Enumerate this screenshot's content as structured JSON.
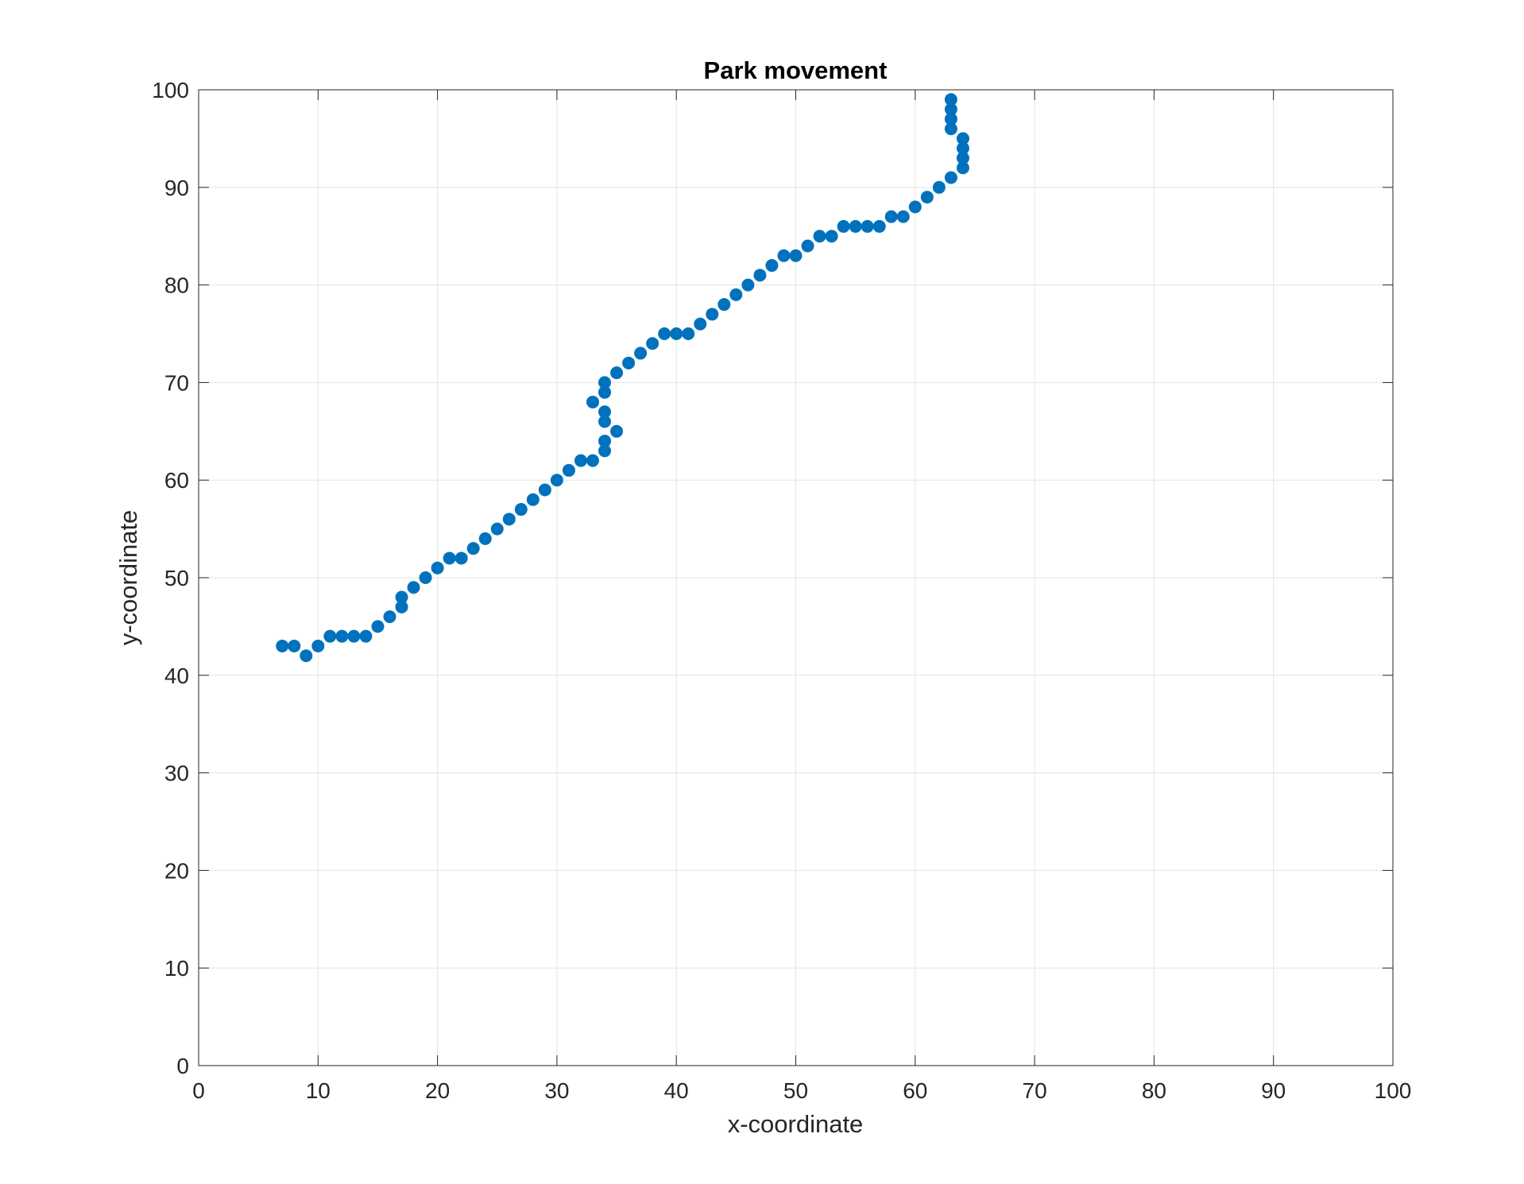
{
  "chart_data": {
    "type": "scatter",
    "title": "Park movement",
    "xlabel": "x-coordinate",
    "ylabel": "y-coordinate",
    "xlim": [
      0,
      100
    ],
    "ylim": [
      0,
      100
    ],
    "xticks": [
      0,
      10,
      20,
      30,
      40,
      50,
      60,
      70,
      80,
      90,
      100
    ],
    "yticks": [
      0,
      10,
      20,
      30,
      40,
      50,
      60,
      70,
      80,
      90,
      100
    ],
    "grid": true,
    "marker_color": "#0072BD",
    "series": [
      {
        "x": [
          7,
          8,
          9,
          10,
          11,
          12,
          13,
          14,
          15,
          16,
          17,
          17,
          18,
          19,
          20,
          21,
          22,
          23,
          24,
          25,
          26,
          27,
          28,
          29,
          30,
          31,
          32,
          33,
          34,
          34,
          35,
          34,
          34,
          34,
          33,
          34,
          34,
          35,
          36,
          37,
          38,
          39,
          40,
          41,
          42,
          43,
          44,
          45,
          46,
          47,
          48,
          49,
          50,
          51,
          52,
          53,
          54,
          55,
          56,
          57,
          58,
          59,
          60,
          61,
          62,
          63,
          64,
          64,
          64,
          64,
          63,
          63,
          63,
          63
        ],
        "y": [
          43,
          43,
          42,
          43,
          44,
          44,
          44,
          44,
          45,
          46,
          47,
          48,
          49,
          50,
          51,
          52,
          52,
          53,
          54,
          55,
          56,
          57,
          58,
          59,
          60,
          61,
          62,
          62,
          63,
          64,
          65,
          66,
          67,
          69,
          68,
          69,
          70,
          71,
          72,
          73,
          74,
          75,
          75,
          75,
          76,
          77,
          78,
          79,
          80,
          81,
          82,
          83,
          83,
          84,
          85,
          85,
          86,
          86,
          86,
          86,
          87,
          87,
          88,
          89,
          90,
          91,
          92,
          93,
          94,
          95,
          96,
          97,
          98,
          99
        ]
      }
    ]
  }
}
